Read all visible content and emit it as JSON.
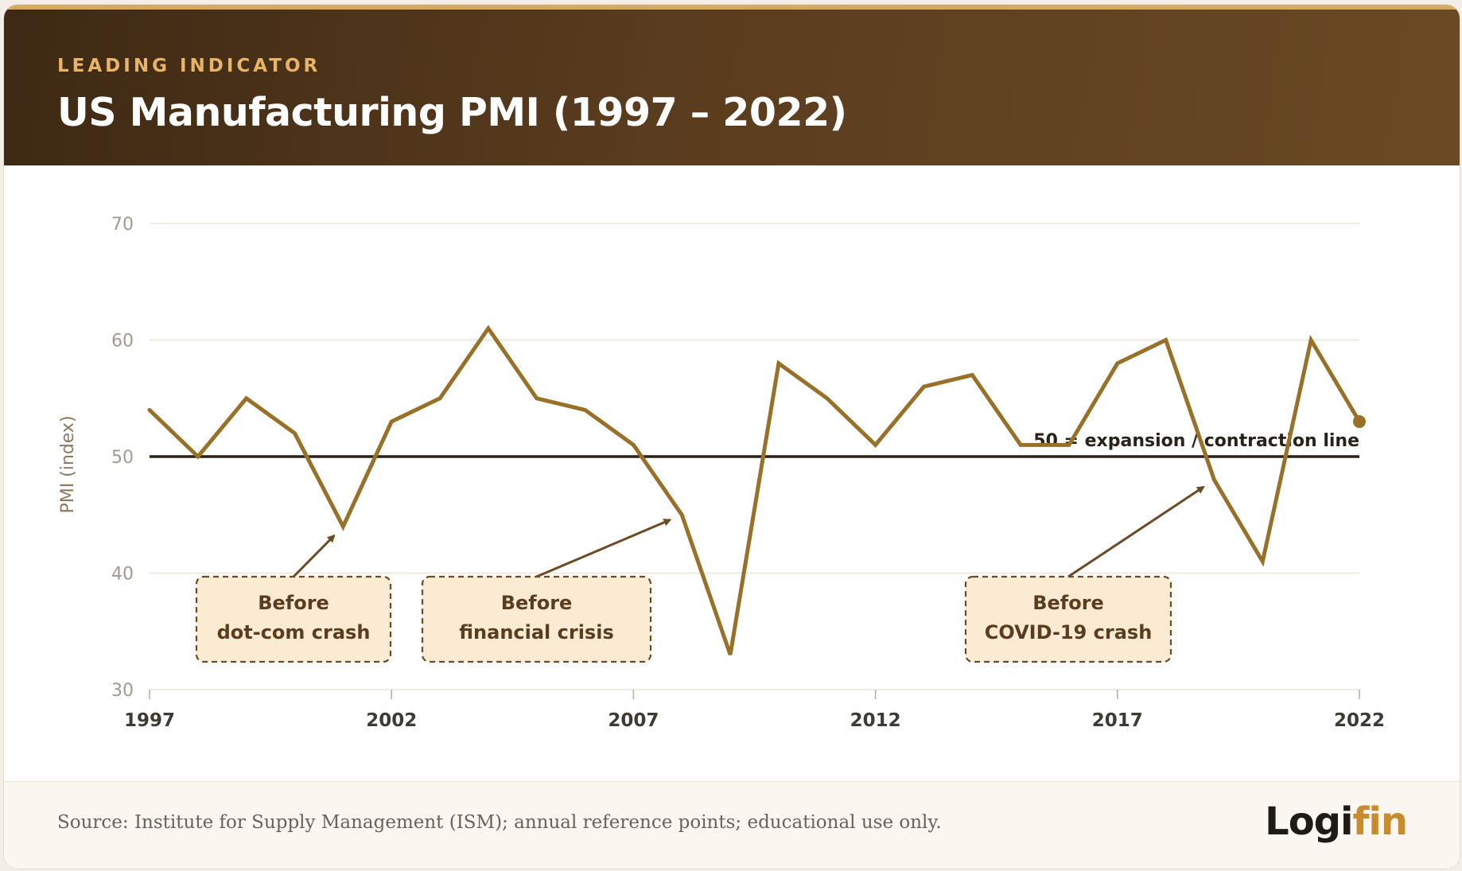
{
  "header": {
    "kicker": "LEADING INDICATOR",
    "title": "US Manufacturing PMI (1997 – 2022)"
  },
  "chart_data": {
    "type": "line",
    "title": "US Manufacturing PMI (1997 – 2022)",
    "ylabel": "PMI (index)",
    "xlabel": "",
    "ylim": [
      30,
      70
    ],
    "xlim": [
      1997,
      2022
    ],
    "y_ticks": [
      30,
      40,
      50,
      60,
      70
    ],
    "x_ticks": [
      "1997",
      "2002",
      "2007",
      "2012",
      "2017",
      "2022"
    ],
    "grid": "horizontal",
    "series": [
      {
        "color": "#987028",
        "x": [
          1997,
          1998,
          1999,
          2000,
          2001,
          2002,
          2003,
          2004,
          2005,
          2006,
          2007,
          2008,
          2009,
          2010,
          2011,
          2012,
          2013,
          2014,
          2015,
          2016,
          2017,
          2018,
          2019,
          2020,
          2021,
          2022
        ],
        "values": [
          54,
          50,
          55,
          52,
          44,
          53,
          55,
          61,
          55,
          54,
          51,
          45,
          33,
          58,
          55,
          51,
          56,
          57,
          51,
          51,
          58,
          60,
          48,
          41,
          60,
          53
        ]
      }
    ],
    "reference_line": {
      "value": 50,
      "label": "50 = expansion / contraction line",
      "color": "#2a2118"
    },
    "annotations": [
      {
        "lines": [
          "Before",
          "dot-com crash"
        ],
        "target_x": 2001,
        "target_y": 44
      },
      {
        "lines": [
          "Before",
          "financial crisis"
        ],
        "target_x": 2008,
        "target_y": 45
      },
      {
        "lines": [
          "Before",
          "COVID-19 crash"
        ],
        "target_x": 2019,
        "target_y": 48
      }
    ]
  },
  "footer": {
    "source": "Source: Institute for Supply Management (ISM); annual reference points; educational use only.",
    "logo_main": "Logi",
    "logo_accent": "fin"
  },
  "colors": {
    "line": "#987028",
    "header_dark": "#3d2914",
    "kicker": "#eab468",
    "callout_fill": "#fcebd3",
    "callout_border": "#6b4a26",
    "arrow": "#6b4a26"
  }
}
